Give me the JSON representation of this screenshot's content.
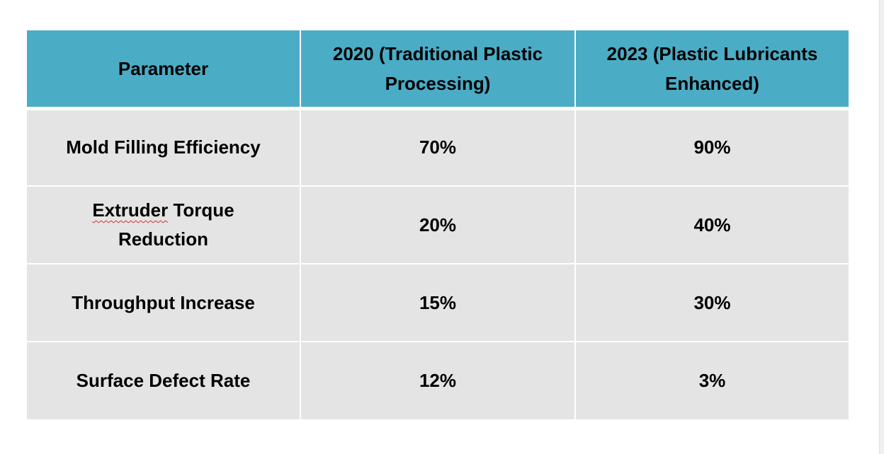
{
  "table": {
    "headers": [
      "Parameter",
      "2020 (Traditional Plastic Processing)",
      "2023 (Plastic Lubricants Enhanced)"
    ],
    "rows": [
      {
        "parameter": "Mold Filling Efficiency",
        "y2020": "70%",
        "y2023": "90%"
      },
      {
        "parameter_word1": "Extruder",
        "parameter_rest": " Torque Reduction",
        "y2020": "20%",
        "y2023": "40%"
      },
      {
        "parameter": "Throughput Increase",
        "y2020": "15%",
        "y2023": "30%"
      },
      {
        "parameter": "Surface Defect Rate",
        "y2020": "12%",
        "y2023": "3%"
      }
    ],
    "colors": {
      "header_bg": "#4bacc6",
      "row_bg": "#e4e4e4",
      "text": "#000000"
    }
  }
}
